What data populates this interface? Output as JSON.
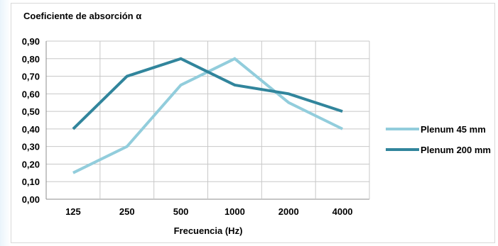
{
  "chart_data": {
    "type": "line",
    "title": "Coeficiente de absorción α",
    "xlabel": "Frecuencia (Hz)",
    "ylabel": "",
    "categories": [
      "125",
      "250",
      "500",
      "1000",
      "2000",
      "4000"
    ],
    "ylim": [
      0,
      0.9
    ],
    "ytick_step": 0.1,
    "ytick_labels": [
      "0,00",
      "0,10",
      "0,20",
      "0,30",
      "0,40",
      "0,50",
      "0,60",
      "0,70",
      "0,80",
      "0,90"
    ],
    "grid": true,
    "legend_position": "right",
    "series": [
      {
        "name": "Plenum 45 mm",
        "color": "#92cddc",
        "values": [
          0.15,
          0.3,
          0.65,
          0.8,
          0.55,
          0.4
        ]
      },
      {
        "name": "Plenum 200 mm",
        "color": "#31859c",
        "values": [
          0.4,
          0.7,
          0.8,
          0.65,
          0.6,
          0.5
        ]
      }
    ]
  }
}
